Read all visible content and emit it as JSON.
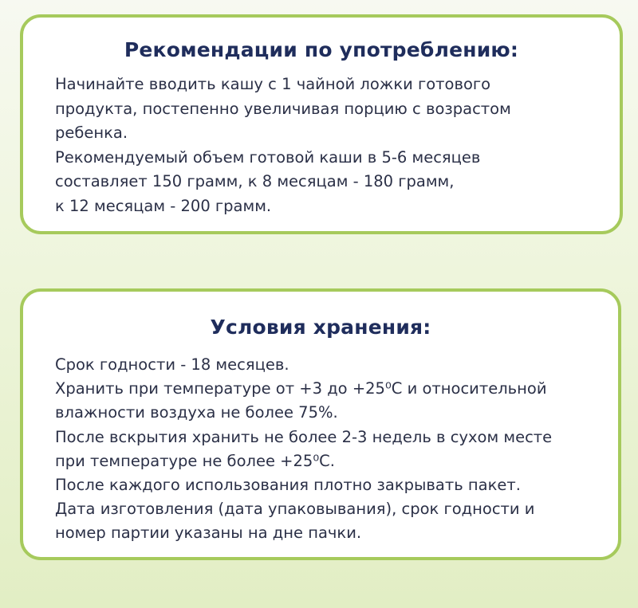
{
  "usage": {
    "title": "Рекомендации по употреблению:",
    "lines": [
      "Начинайте вводить кашу с 1 чайной ложки готового",
      "продукта, постепенно увеличивая порцию с возрастом",
      "ребенка.",
      "Рекомендуемый объем готовой каши в 5-6 месяцев",
      "составляет 150 грамм, к 8 месяцам - 180 грамм,",
      "к 12 месяцам - 200 грамм."
    ]
  },
  "storage": {
    "title": "Условия хранения:",
    "lines": [
      "Срок годности - 18 месяцев.",
      "Хранить при температуре от +3 до +25⁰С и относительной",
      "влажности воздуха не более 75%.",
      "После вскрытия хранить не более 2-3 недель в сухом месте",
      "при температуре не более +25⁰С.",
      "После каждого использования плотно закрывать пакет.",
      "Дата изготовления (дата упаковывания), срок годности и",
      "номер партии указаны на дне пачки."
    ]
  },
  "colors": {
    "border": "#a6ca5c",
    "title": "#1f2d5c",
    "text": "#2b3047"
  }
}
